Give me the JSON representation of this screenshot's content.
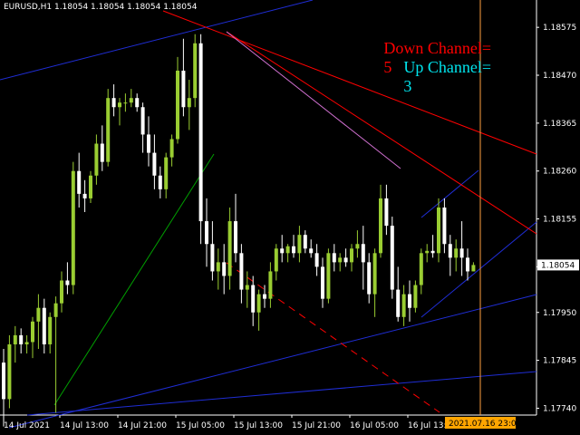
{
  "header": {
    "symbol_info": "EURUSD,H1  1.18054 1.18054 1.18054 1.18054"
  },
  "indicator": {
    "down_channel_label": "Down Channel=",
    "down_channel_value": "5",
    "up_channel_label": "Up Channel=",
    "up_channel_value": "3",
    "down_color": "#ff0000",
    "up_color": "#00e5ee"
  },
  "colors": {
    "background": "#000000",
    "bull_candle": "#9acd32",
    "bear_candle": "#ffffff",
    "blue_line": "#1f2dd4",
    "red_line": "#ff0000",
    "green_line": "#00a000",
    "violet_line": "#d070d0",
    "cursor_line": "#ffa040",
    "current_price_box": "#ffffff",
    "current_time_box": "#ffa500"
  },
  "chart_data": {
    "type": "candlestick",
    "symbol": "EURUSD",
    "timeframe": "H1",
    "price_ticks": [
      "1.18575",
      "1.18470",
      "1.18365",
      "1.18260",
      "1.18155",
      "1.18050",
      "1.17950",
      "1.17845",
      "1.17740"
    ],
    "current_price": "1.18054",
    "current_price_value": 1.18054,
    "time_ticks": [
      "14 Jul 2021",
      "14 Jul 13:00",
      "14 Jul 21:00",
      "15 Jul 05:00",
      "15 Jul 13:00",
      "15 Jul 21:00",
      "16 Jul 05:00",
      "16 Jul 13:00"
    ],
    "cursor_time_label": "2021.07.16 23:00",
    "ylim": [
      1.17725,
      1.18625
    ],
    "bar_count": 82,
    "candles": [
      [
        1.1784,
        1.1787,
        1.177,
        1.1776
      ],
      [
        1.1776,
        1.179,
        1.1774,
        1.1788
      ],
      [
        1.1788,
        1.1792,
        1.1784,
        1.179
      ],
      [
        1.179,
        1.17915,
        1.1786,
        1.1788
      ],
      [
        1.1788,
        1.179,
        1.1786,
        1.17885
      ],
      [
        1.17885,
        1.1794,
        1.1785,
        1.1793
      ],
      [
        1.1793,
        1.1799,
        1.1787,
        1.1796
      ],
      [
        1.1796,
        1.1798,
        1.1786,
        1.1788
      ],
      [
        1.1788,
        1.1795,
        1.1786,
        1.1794
      ],
      [
        1.1794,
        1.17985,
        1.1773,
        1.1797
      ],
      [
        1.1797,
        1.1804,
        1.1795,
        1.1802
      ],
      [
        1.1802,
        1.1806,
        1.1799,
        1.1801
      ],
      [
        1.1801,
        1.1828,
        1.1799,
        1.1826
      ],
      [
        1.1826,
        1.183,
        1.1818,
        1.1821
      ],
      [
        1.1821,
        1.1824,
        1.1817,
        1.182
      ],
      [
        1.182,
        1.1826,
        1.1819,
        1.1825
      ],
      [
        1.1825,
        1.1834,
        1.1823,
        1.1832
      ],
      [
        1.1832,
        1.1836,
        1.1826,
        1.1828
      ],
      [
        1.1828,
        1.1844,
        1.1827,
        1.1842
      ],
      [
        1.1842,
        1.1845,
        1.1838,
        1.184
      ],
      [
        1.184,
        1.1842,
        1.1836,
        1.1841
      ],
      [
        1.1841,
        1.1843,
        1.1839,
        1.1841
      ],
      [
        1.1841,
        1.1844,
        1.184,
        1.1842
      ],
      [
        1.1842,
        1.1843,
        1.1839,
        1.184
      ],
      [
        1.184,
        1.1841,
        1.183,
        1.1834
      ],
      [
        1.1834,
        1.1838,
        1.1827,
        1.183
      ],
      [
        1.183,
        1.1834,
        1.1822,
        1.1825
      ],
      [
        1.1825,
        1.1827,
        1.182,
        1.1822
      ],
      [
        1.1822,
        1.183,
        1.182,
        1.1829
      ],
      [
        1.1829,
        1.1834,
        1.1827,
        1.1833
      ],
      [
        1.1833,
        1.1851,
        1.1832,
        1.1848
      ],
      [
        1.1848,
        1.1855,
        1.1838,
        1.184
      ],
      [
        1.184,
        1.1846,
        1.1835,
        1.1842
      ],
      [
        1.1842,
        1.1856,
        1.184,
        1.1854
      ],
      [
        1.1854,
        1.1856,
        1.181,
        1.1815
      ],
      [
        1.1815,
        1.182,
        1.1805,
        1.181
      ],
      [
        1.181,
        1.1815,
        1.1802,
        1.1804
      ],
      [
        1.1804,
        1.1809,
        1.18,
        1.1806
      ],
      [
        1.1806,
        1.181,
        1.1799,
        1.1803
      ],
      [
        1.1803,
        1.1818,
        1.18,
        1.1815
      ],
      [
        1.1815,
        1.1821,
        1.1806,
        1.1808
      ],
      [
        1.1808,
        1.181,
        1.1797,
        1.18
      ],
      [
        1.18,
        1.1804,
        1.1796,
        1.1801
      ],
      [
        1.1801,
        1.1803,
        1.1792,
        1.1795
      ],
      [
        1.1795,
        1.18,
        1.1791,
        1.1799
      ],
      [
        1.1799,
        1.1801,
        1.1796,
        1.1798
      ],
      [
        1.1798,
        1.1806,
        1.1796,
        1.1804
      ],
      [
        1.1804,
        1.181,
        1.1802,
        1.1809
      ],
      [
        1.1809,
        1.1812,
        1.1806,
        1.1808
      ],
      [
        1.1808,
        1.181,
        1.1806,
        1.18095
      ],
      [
        1.18095,
        1.1812,
        1.1807,
        1.1808
      ],
      [
        1.1808,
        1.1814,
        1.1806,
        1.1812
      ],
      [
        1.1812,
        1.1813,
        1.1808,
        1.1809
      ],
      [
        1.1809,
        1.1811,
        1.1807,
        1.1808
      ],
      [
        1.1808,
        1.181,
        1.1803,
        1.1805
      ],
      [
        1.1805,
        1.1807,
        1.1796,
        1.1798
      ],
      [
        1.1798,
        1.1809,
        1.1797,
        1.1808
      ],
      [
        1.1808,
        1.181,
        1.1804,
        1.1806
      ],
      [
        1.1806,
        1.1808,
        1.1804,
        1.1807
      ],
      [
        1.1807,
        1.1809,
        1.1805,
        1.1806
      ],
      [
        1.1806,
        1.181,
        1.1804,
        1.1809
      ],
      [
        1.1809,
        1.1813,
        1.1807,
        1.181
      ],
      [
        1.181,
        1.1814,
        1.18,
        1.1806
      ],
      [
        1.1806,
        1.1808,
        1.1797,
        1.1799
      ],
      [
        1.1799,
        1.1809,
        1.1794,
        1.1808
      ],
      [
        1.1808,
        1.1823,
        1.1807,
        1.182
      ],
      [
        1.182,
        1.1823,
        1.1812,
        1.1814
      ],
      [
        1.1814,
        1.1816,
        1.1798,
        1.18
      ],
      [
        1.18,
        1.1805,
        1.1793,
        1.1794
      ],
      [
        1.1794,
        1.1801,
        1.1792,
        1.1799
      ],
      [
        1.1799,
        1.1802,
        1.1793,
        1.1796
      ],
      [
        1.1796,
        1.1802,
        1.1795,
        1.1801
      ],
      [
        1.1801,
        1.1809,
        1.1799,
        1.1808
      ],
      [
        1.1808,
        1.181,
        1.1806,
        1.18085
      ],
      [
        1.18085,
        1.1812,
        1.1807,
        1.1808
      ],
      [
        1.1808,
        1.182,
        1.1806,
        1.1818
      ],
      [
        1.1818,
        1.182,
        1.1808,
        1.181
      ],
      [
        1.181,
        1.1812,
        1.1803,
        1.1807
      ],
      [
        1.1807,
        1.1811,
        1.1804,
        1.1809
      ],
      [
        1.1809,
        1.1815,
        1.1803,
        1.1807
      ],
      [
        1.1807,
        1.1809,
        1.1802,
        1.1804
      ],
      [
        1.1804,
        1.1806,
        1.1804,
        1.18054
      ]
    ]
  }
}
